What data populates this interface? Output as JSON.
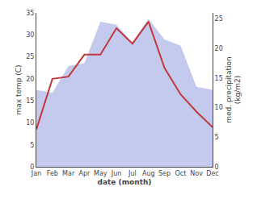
{
  "chart_data": {
    "type": "line",
    "categories": [
      "Jan",
      "Feb",
      "Mar",
      "Apr",
      "May",
      "Jun",
      "Jul",
      "Aug",
      "Sep",
      "Oct",
      "Nov",
      "Dec"
    ],
    "x_label": "date (month)",
    "y_label": "max temp (C)",
    "y2_label": "med. precipitation\n(kg/m2)",
    "series": [
      {
        "type": "area",
        "axis": "y2",
        "color": "#b0b8e8",
        "values": [
          13.0,
          12.5,
          17.0,
          17.5,
          24.5,
          24.0,
          21.0,
          25.0,
          21.5,
          20.5,
          13.5,
          13.0
        ]
      },
      {
        "type": "line",
        "color": "#c0393b",
        "values": [
          8.5,
          20.0,
          20.5,
          25.5,
          25.5,
          31.5,
          28.0,
          33.0,
          22.5,
          16.5,
          12.5,
          9.0
        ]
      }
    ],
    "ylim": [
      0,
      35
    ],
    "yticks": [
      0,
      5,
      10,
      15,
      20,
      25,
      30,
      35
    ],
    "y2lim": [
      0,
      26
    ],
    "y2ticks": [
      0,
      5,
      10,
      15,
      20,
      25
    ],
    "grid": false,
    "legend": false
  }
}
